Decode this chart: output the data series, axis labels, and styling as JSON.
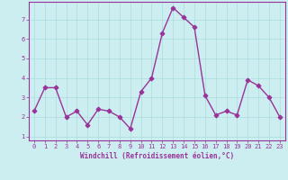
{
  "x": [
    0,
    1,
    2,
    3,
    4,
    5,
    6,
    7,
    8,
    9,
    10,
    11,
    12,
    13,
    14,
    15,
    16,
    17,
    18,
    19,
    20,
    21,
    22,
    23
  ],
  "y": [
    2.3,
    3.5,
    3.5,
    2.0,
    2.3,
    1.6,
    2.4,
    2.3,
    2.0,
    1.4,
    3.3,
    4.0,
    6.3,
    7.6,
    7.1,
    6.6,
    3.1,
    2.1,
    2.3,
    2.1,
    3.9,
    3.6,
    3.0,
    2.0
  ],
  "line_color": "#993399",
  "marker": "D",
  "bg_color": "#cceef0",
  "grid_color": "#aadddd",
  "axis_color": "#993399",
  "xlabel": "Windchill (Refroidissement éolien,°C)",
  "ylim": [
    0.8,
    7.9
  ],
  "xlim": [
    -0.5,
    23.5
  ],
  "yticks": [
    1,
    2,
    3,
    4,
    5,
    6,
    7
  ],
  "xticks": [
    0,
    1,
    2,
    3,
    4,
    5,
    6,
    7,
    8,
    9,
    10,
    11,
    12,
    13,
    14,
    15,
    16,
    17,
    18,
    19,
    20,
    21,
    22,
    23
  ],
  "tick_color": "#993399",
  "linewidth": 1.0,
  "markersize": 2.5
}
